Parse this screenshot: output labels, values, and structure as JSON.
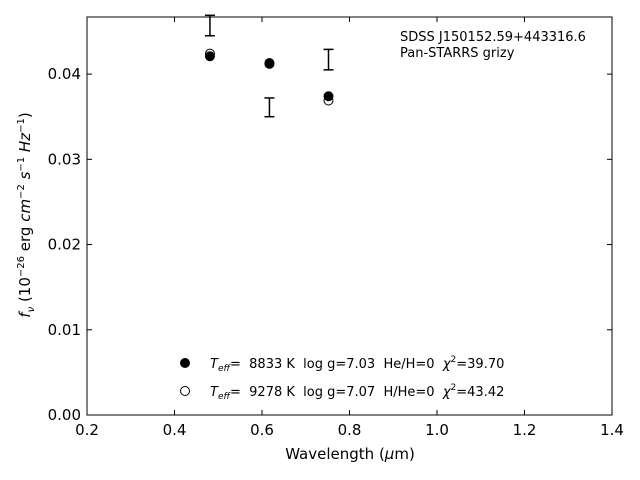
{
  "chart_data": {
    "type": "scatter",
    "xlabel": "Wavelength (μm)",
    "ylabel": "f_ν (10^-26 erg cm^-2 s^-1 Hz^-1)",
    "xlim": [
      0.2,
      1.4
    ],
    "ylim": [
      0.0,
      0.0467
    ],
    "xticks": [
      "0.2",
      "0.4",
      "0.6",
      "0.8",
      "1.0",
      "1.2",
      "1.4"
    ],
    "yticks": [
      "0.00",
      "0.01",
      "0.02",
      "0.03",
      "0.04"
    ],
    "grid": false,
    "annotation": [
      "SDSS J150152.59+443316.6",
      "Pan-STARRS grizy"
    ],
    "observed": {
      "x": [
        0.481,
        0.617,
        0.752
      ],
      "y": [
        0.0457,
        0.0361,
        0.0417
      ],
      "yerr": [
        0.0012,
        0.0011,
        0.0012
      ]
    },
    "series": [
      {
        "name": "T_eff= 8833 K log g=7.03 He/H=0 χ²=39.70",
        "marker": "filled-circle",
        "x": [
          0.481,
          0.617,
          0.752
        ],
        "y": [
          0.0421,
          0.0412,
          0.0374
        ]
      },
      {
        "name": "T_eff= 9278 K log g=7.07 H/He=0 χ²=43.42",
        "marker": "open-circle",
        "x": [
          0.481,
          0.617,
          0.752
        ],
        "y": [
          0.0424,
          0.0413,
          0.0369
        ]
      }
    ],
    "legend": [
      {
        "marker": "filled-circle",
        "teff_symbol": "T",
        "teff_sub": "eff",
        "teff_text": "=  8833 K  log g=7.03  He/H=0  ",
        "chi_symbol": "χ",
        "chi_sup": "2",
        "chi_text": "=39.70"
      },
      {
        "marker": "open-circle",
        "teff_symbol": "T",
        "teff_sub": "eff",
        "teff_text": "=  9278 K  log g=7.07  H/He=0  ",
        "chi_symbol": "χ",
        "chi_sup": "2",
        "chi_text": "=43.42"
      }
    ],
    "xlabel_parts": {
      "pre": "Wavelength (",
      "mu": "μ",
      "post": "m)"
    },
    "ylabel_parts": {
      "f": "f",
      "f_sub": "ν",
      "open": " (10",
      "exp1": "−26",
      "erg": " erg ",
      "cm": "cm",
      "exp2": "−2",
      "s": " s",
      "exp3": "−1",
      "hz": " Hz",
      "exp4": "−1",
      "close": ")"
    }
  }
}
